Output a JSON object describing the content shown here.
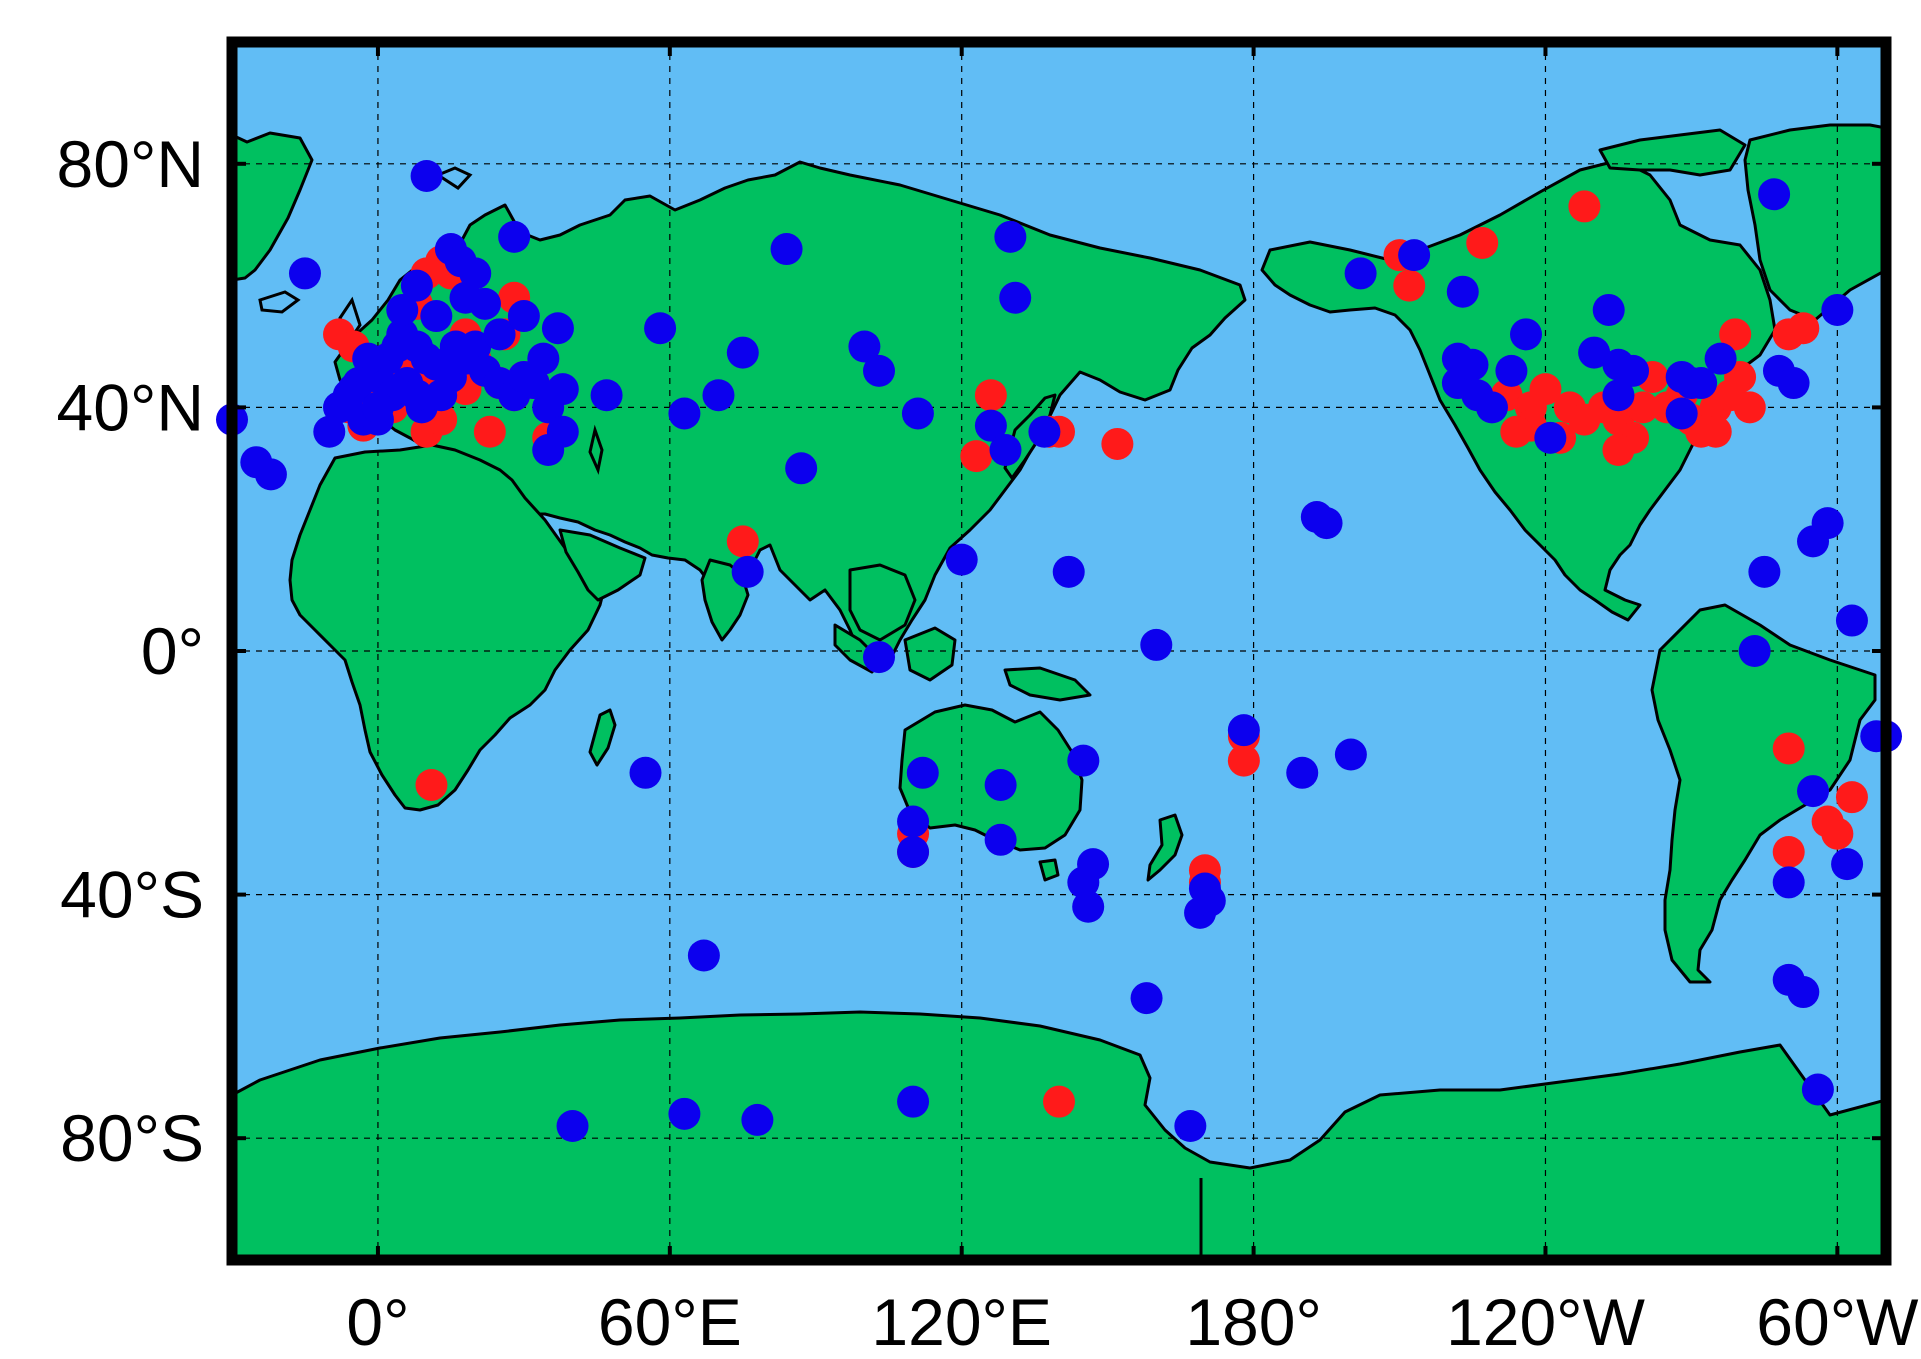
{
  "map": {
    "colors": {
      "ocean": "#61bdf5",
      "land": "#00c060",
      "coast": "#000000",
      "frame": "#000000",
      "grid": "#000000",
      "red_dots": "#ff1a1a",
      "blue_dots": "#0c00ee"
    },
    "grid": "dashed",
    "x_ticks": [
      {
        "lon": 0,
        "label": "0°"
      },
      {
        "lon": 60,
        "label": "60°E"
      },
      {
        "lon": 120,
        "label": "120°E"
      },
      {
        "lon": 180,
        "label": "180°"
      },
      {
        "lon": 240,
        "label": "120°W"
      },
      {
        "lon": 300,
        "label": "60°W"
      }
    ],
    "y_ticks": [
      {
        "lat": 80,
        "label": "80°N"
      },
      {
        "lat": 40,
        "label": "40°N"
      },
      {
        "lat": 0,
        "label": "0°"
      },
      {
        "lat": -40,
        "label": "40°S"
      },
      {
        "lat": -80,
        "label": "80°S"
      }
    ],
    "x_range": [
      -30,
      310
    ],
    "y_range": [
      -100,
      100
    ],
    "red_sites": [
      [
        -8,
        52
      ],
      [
        -5,
        50
      ],
      [
        -6,
        40
      ],
      [
        -3,
        37
      ],
      [
        2,
        48
      ],
      [
        5,
        47
      ],
      [
        8,
        47
      ],
      [
        10,
        45
      ],
      [
        12,
        44
      ],
      [
        15,
        45
      ],
      [
        18,
        43
      ],
      [
        20,
        48
      ],
      [
        22,
        46
      ],
      [
        25,
        44
      ],
      [
        28,
        42
      ],
      [
        30,
        45
      ],
      [
        32,
        44
      ],
      [
        28,
        58
      ],
      [
        15,
        62
      ],
      [
        13,
        64
      ],
      [
        -2,
        42
      ],
      [
        3,
        40
      ],
      [
        10,
        36
      ],
      [
        13,
        38
      ],
      [
        23,
        36
      ],
      [
        18,
        52
      ],
      [
        26,
        52
      ],
      [
        35,
        35
      ],
      [
        10,
        62
      ],
      [
        8,
        57
      ],
      [
        75,
        18
      ],
      [
        126,
        42
      ],
      [
        123,
        32
      ],
      [
        138,
        36
      ],
      [
        140,
        36
      ],
      [
        152,
        34
      ],
      [
        170,
        -36
      ],
      [
        170,
        -38
      ],
      [
        110,
        -30
      ],
      [
        110,
        -33
      ],
      [
        11,
        -22
      ],
      [
        178,
        -14
      ],
      [
        178,
        -18
      ],
      [
        140,
        -74
      ],
      [
        212,
        60
      ],
      [
        210,
        65
      ],
      [
        227,
        67
      ],
      [
        248,
        73
      ],
      [
        232,
        42
      ],
      [
        237,
        40
      ],
      [
        240,
        43
      ],
      [
        245,
        40
      ],
      [
        248,
        38
      ],
      [
        252,
        40
      ],
      [
        255,
        38
      ],
      [
        258,
        35
      ],
      [
        260,
        40
      ],
      [
        262,
        45
      ],
      [
        265,
        40
      ],
      [
        268,
        42
      ],
      [
        270,
        38
      ],
      [
        272,
        36
      ],
      [
        275,
        40
      ],
      [
        278,
        42
      ],
      [
        280,
        45
      ],
      [
        282,
        40
      ],
      [
        243,
        35
      ],
      [
        255,
        33
      ],
      [
        237,
        37
      ],
      [
        234,
        36
      ],
      [
        279,
        52
      ],
      [
        290,
        52
      ],
      [
        293,
        53
      ],
      [
        275,
        36
      ],
      [
        290,
        -16
      ],
      [
        290,
        -33
      ],
      [
        298,
        -28
      ],
      [
        300,
        -30
      ],
      [
        303,
        -24
      ]
    ],
    "blue_sites": [
      [
        -30,
        38
      ],
      [
        -25,
        31
      ],
      [
        -22,
        29
      ],
      [
        -15,
        62
      ],
      [
        10,
        78
      ],
      [
        8,
        60
      ],
      [
        15,
        66
      ],
      [
        17,
        64
      ],
      [
        20,
        62
      ],
      [
        -5,
        43
      ],
      [
        -8,
        40
      ],
      [
        -3,
        38
      ],
      [
        0,
        45
      ],
      [
        2,
        48
      ],
      [
        4,
        50
      ],
      [
        5,
        52
      ],
      [
        8,
        50
      ],
      [
        10,
        48
      ],
      [
        12,
        47
      ],
      [
        15,
        45
      ],
      [
        18,
        48
      ],
      [
        20,
        50
      ],
      [
        22,
        46
      ],
      [
        25,
        44
      ],
      [
        28,
        42
      ],
      [
        30,
        45
      ],
      [
        32,
        44
      ],
      [
        35,
        40
      ],
      [
        38,
        43
      ],
      [
        -10,
        36
      ],
      [
        0,
        38
      ],
      [
        3,
        42
      ],
      [
        6,
        44
      ],
      [
        9,
        40
      ],
      [
        13,
        42
      ],
      [
        22,
        57
      ],
      [
        25,
        52
      ],
      [
        34,
        48
      ],
      [
        37,
        53
      ],
      [
        30,
        55
      ],
      [
        5,
        56
      ],
      [
        12,
        55
      ],
      [
        18,
        58
      ],
      [
        28,
        68
      ],
      [
        38,
        36
      ],
      [
        35,
        33
      ],
      [
        47,
        42
      ],
      [
        -2,
        48
      ],
      [
        -4,
        44
      ],
      [
        -6,
        42
      ],
      [
        0,
        40
      ],
      [
        8,
        42
      ],
      [
        16,
        50
      ],
      [
        58,
        53
      ],
      [
        75,
        49
      ],
      [
        70,
        42
      ],
      [
        63,
        39
      ],
      [
        84,
        66
      ],
      [
        87,
        30
      ],
      [
        100,
        50
      ],
      [
        103,
        46
      ],
      [
        111,
        39
      ],
      [
        120,
        15
      ],
      [
        126,
        37
      ],
      [
        129,
        33
      ],
      [
        137,
        36
      ],
      [
        130,
        68
      ],
      [
        131,
        58
      ],
      [
        76,
        13
      ],
      [
        103,
        -1
      ],
      [
        112,
        -20
      ],
      [
        110,
        -28
      ],
      [
        110,
        -33
      ],
      [
        128,
        -22
      ],
      [
        128,
        -31
      ],
      [
        145,
        -38
      ],
      [
        147,
        -35
      ],
      [
        146,
        -42
      ],
      [
        145,
        -18
      ],
      [
        142,
        13
      ],
      [
        55,
        -20
      ],
      [
        67,
        -50
      ],
      [
        40,
        -78
      ],
      [
        63,
        -76
      ],
      [
        78,
        -77
      ],
      [
        110,
        -74
      ],
      [
        167,
        -78
      ],
      [
        158,
        -57
      ],
      [
        169,
        -43
      ],
      [
        171,
        -41
      ],
      [
        170,
        -39
      ],
      [
        160,
        1
      ],
      [
        178,
        -13
      ],
      [
        190,
        -20
      ],
      [
        200,
        -17
      ],
      [
        193,
        22
      ],
      [
        195,
        21
      ],
      [
        202,
        62
      ],
      [
        213,
        65
      ],
      [
        223,
        59
      ],
      [
        222,
        48
      ],
      [
        222,
        44
      ],
      [
        225,
        47
      ],
      [
        226,
        42
      ],
      [
        229,
        40
      ],
      [
        233,
        46
      ],
      [
        236,
        52
      ],
      [
        250,
        49
      ],
      [
        241,
        35
      ],
      [
        255,
        47
      ],
      [
        258,
        46
      ],
      [
        253,
        56
      ],
      [
        255,
        42
      ],
      [
        268,
        45
      ],
      [
        268,
        39
      ],
      [
        270,
        44
      ],
      [
        272,
        44
      ],
      [
        276,
        48
      ],
      [
        288,
        46
      ],
      [
        287,
        75
      ],
      [
        300,
        56
      ],
      [
        295,
        18
      ],
      [
        285,
        13
      ],
      [
        283,
        0
      ],
      [
        290,
        -38
      ],
      [
        290,
        -54
      ],
      [
        293,
        -56
      ],
      [
        296,
        -72
      ],
      [
        295,
        -23
      ],
      [
        302,
        -35
      ],
      [
        308,
        -14
      ],
      [
        310,
        -14
      ],
      [
        303,
        5
      ],
      [
        298,
        21
      ],
      [
        291,
        44
      ]
    ]
  }
}
